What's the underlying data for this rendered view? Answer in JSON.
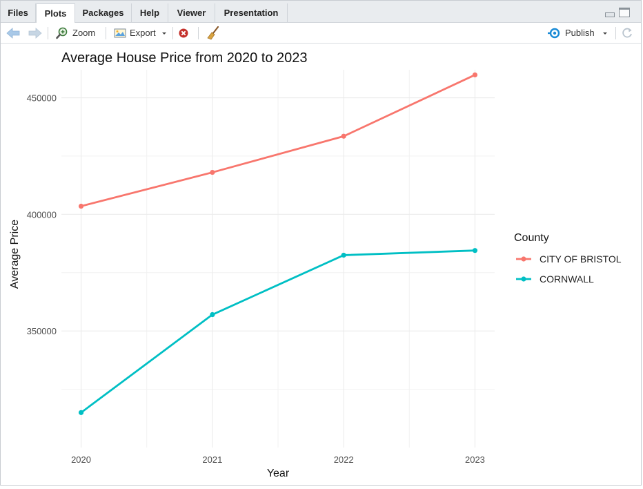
{
  "tabs": [
    {
      "label": "Files",
      "active": false
    },
    {
      "label": "Plots",
      "active": true
    },
    {
      "label": "Packages",
      "active": false
    },
    {
      "label": "Help",
      "active": false
    },
    {
      "label": "Viewer",
      "active": false
    },
    {
      "label": "Presentation",
      "active": false
    }
  ],
  "toolbar": {
    "zoom_label": "Zoom",
    "export_label": "Export",
    "publish_label": "Publish",
    "icons": [
      "back-arrow-icon",
      "forward-arrow-icon",
      "zoom-icon",
      "export-icon",
      "remove-plot-icon",
      "broom-icon",
      "publish-icon",
      "refresh-icon"
    ]
  },
  "colors": {
    "city_of_bristol": "#F8766D",
    "cornwall": "#00BFC4",
    "grid": "#ebebeb",
    "accent_blue": "#1a8bd6"
  },
  "chart_data": {
    "type": "line",
    "title": "Average House Price from 2020 to 2023",
    "xlabel": "Year",
    "ylabel": "Average Price",
    "x": [
      2020,
      2021,
      2022,
      2023
    ],
    "ylim": [
      300000,
      462000
    ],
    "yticks": [
      350000,
      400000,
      450000
    ],
    "ytick_labels": [
      "350000",
      "400000",
      "450000"
    ],
    "xtick_labels": [
      "2020",
      "2021",
      "2022",
      "2023"
    ],
    "grid": true,
    "legend_title": "County",
    "legend_position": "right",
    "series": [
      {
        "name": "CITY OF BRISTOL",
        "color": "#F8766D",
        "values": [
          403500,
          418000,
          433500,
          459800
        ]
      },
      {
        "name": "CORNWALL",
        "color": "#00BFC4",
        "values": [
          315000,
          357000,
          382500,
          384500
        ]
      }
    ]
  }
}
